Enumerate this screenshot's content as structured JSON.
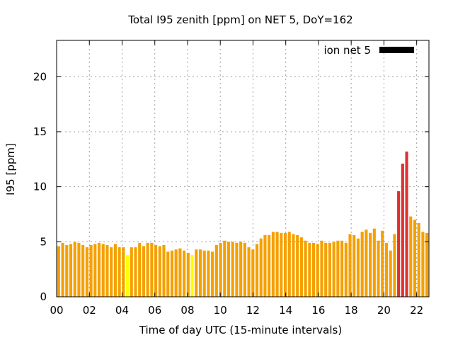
{
  "chart_data": {
    "type": "bar",
    "title": "Total I95 zenith [ppm] on NET 5, DoY=162",
    "xlabel": "Time of day UTC (15-minute intervals)",
    "ylabel": "I95 [ppm]",
    "xlim": [
      0,
      22.75
    ],
    "ylim": [
      0,
      23.3
    ],
    "x_ticks": [
      "00",
      "02",
      "04",
      "06",
      "08",
      "10",
      "12",
      "14",
      "16",
      "18",
      "20",
      "22"
    ],
    "x_tick_values": [
      0,
      2,
      4,
      6,
      8,
      10,
      12,
      14,
      16,
      18,
      20,
      22
    ],
    "y_ticks": [
      "0",
      "5",
      "10",
      "15",
      "20"
    ],
    "y_tick_values": [
      0,
      5,
      10,
      15,
      20
    ],
    "grid": true,
    "legend": {
      "label": "ion net 5",
      "color": "#000000",
      "placement": "top-right"
    },
    "interval_hours": 0.25,
    "colors": {
      "normal": "#f5a000",
      "low": "#ffff00",
      "high": "#e03030"
    },
    "values": [
      4.6,
      4.9,
      4.7,
      4.8,
      5.0,
      4.9,
      4.7,
      4.5,
      4.7,
      4.8,
      4.9,
      4.8,
      4.7,
      4.5,
      4.8,
      4.5,
      4.5,
      3.8,
      4.5,
      4.5,
      4.9,
      4.6,
      4.9,
      4.9,
      4.7,
      4.6,
      4.7,
      4.1,
      4.2,
      4.3,
      4.4,
      4.2,
      4.0,
      3.8,
      4.3,
      4.3,
      4.2,
      4.2,
      4.1,
      4.7,
      4.9,
      5.1,
      5.0,
      5.0,
      4.9,
      5.0,
      4.9,
      4.5,
      4.3,
      4.8,
      5.3,
      5.6,
      5.6,
      5.9,
      5.9,
      5.8,
      5.8,
      5.9,
      5.7,
      5.6,
      5.4,
      5.1,
      4.9,
      4.9,
      4.8,
      5.1,
      4.9,
      4.9,
      5.0,
      5.1,
      5.1,
      4.9,
      5.7,
      5.6,
      5.3,
      5.9,
      6.1,
      5.8,
      6.2,
      5.1,
      6.0,
      4.9,
      4.2,
      5.7,
      9.6,
      12.1,
      13.2,
      7.3,
      7.0,
      6.7,
      5.9,
      5.8
    ],
    "bar_level": [
      "normal",
      "normal",
      "normal",
      "normal",
      "normal",
      "normal",
      "normal",
      "normal",
      "normal",
      "normal",
      "normal",
      "normal",
      "normal",
      "normal",
      "normal",
      "normal",
      "normal",
      "low",
      "normal",
      "normal",
      "normal",
      "normal",
      "normal",
      "normal",
      "normal",
      "normal",
      "normal",
      "normal",
      "normal",
      "normal",
      "normal",
      "normal",
      "normal",
      "low",
      "normal",
      "normal",
      "normal",
      "normal",
      "normal",
      "normal",
      "normal",
      "normal",
      "normal",
      "normal",
      "normal",
      "normal",
      "normal",
      "normal",
      "normal",
      "normal",
      "normal",
      "normal",
      "normal",
      "normal",
      "normal",
      "normal",
      "normal",
      "normal",
      "normal",
      "normal",
      "normal",
      "normal",
      "normal",
      "normal",
      "normal",
      "normal",
      "normal",
      "normal",
      "normal",
      "normal",
      "normal",
      "normal",
      "normal",
      "normal",
      "normal",
      "normal",
      "normal",
      "normal",
      "normal",
      "normal",
      "normal",
      "normal",
      "normal",
      "normal",
      "high",
      "high",
      "high",
      "normal",
      "normal",
      "normal",
      "normal",
      "normal"
    ]
  }
}
